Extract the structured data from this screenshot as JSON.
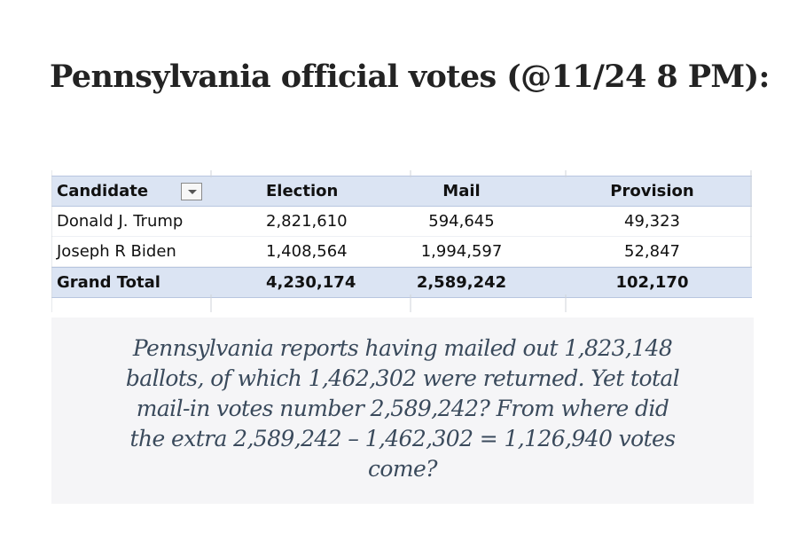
{
  "title": "Pennsylvania official votes (@11/24 8 PM):",
  "table": {
    "headers": [
      "Candidate",
      "Election",
      "Mail",
      "Provision"
    ],
    "rows": [
      [
        "Donald J. Trump",
        "2,821,610",
        "594,645",
        "49,323"
      ],
      [
        "Joseph R Biden",
        "1,408,564",
        "1,994,597",
        "52,847"
      ]
    ],
    "total": [
      "Grand Total",
      "4,230,174",
      "2,589,242",
      "102,170"
    ],
    "header_color": "#dbe4f3"
  },
  "quote": {
    "lines": [
      "Pennsylvania reports having mailed out 1,823,148",
      "ballots, of which 1,462,302 were returned. Yet total",
      "mail-in votes number 2,589,242? From where did",
      "the extra 2,589,242 – 1,462,302 = 1,126,940 votes",
      "come?"
    ],
    "text_color": "#3a4a5c",
    "background": "#f5f5f7"
  },
  "icons": {
    "filter": "filter-dropdown-icon"
  }
}
